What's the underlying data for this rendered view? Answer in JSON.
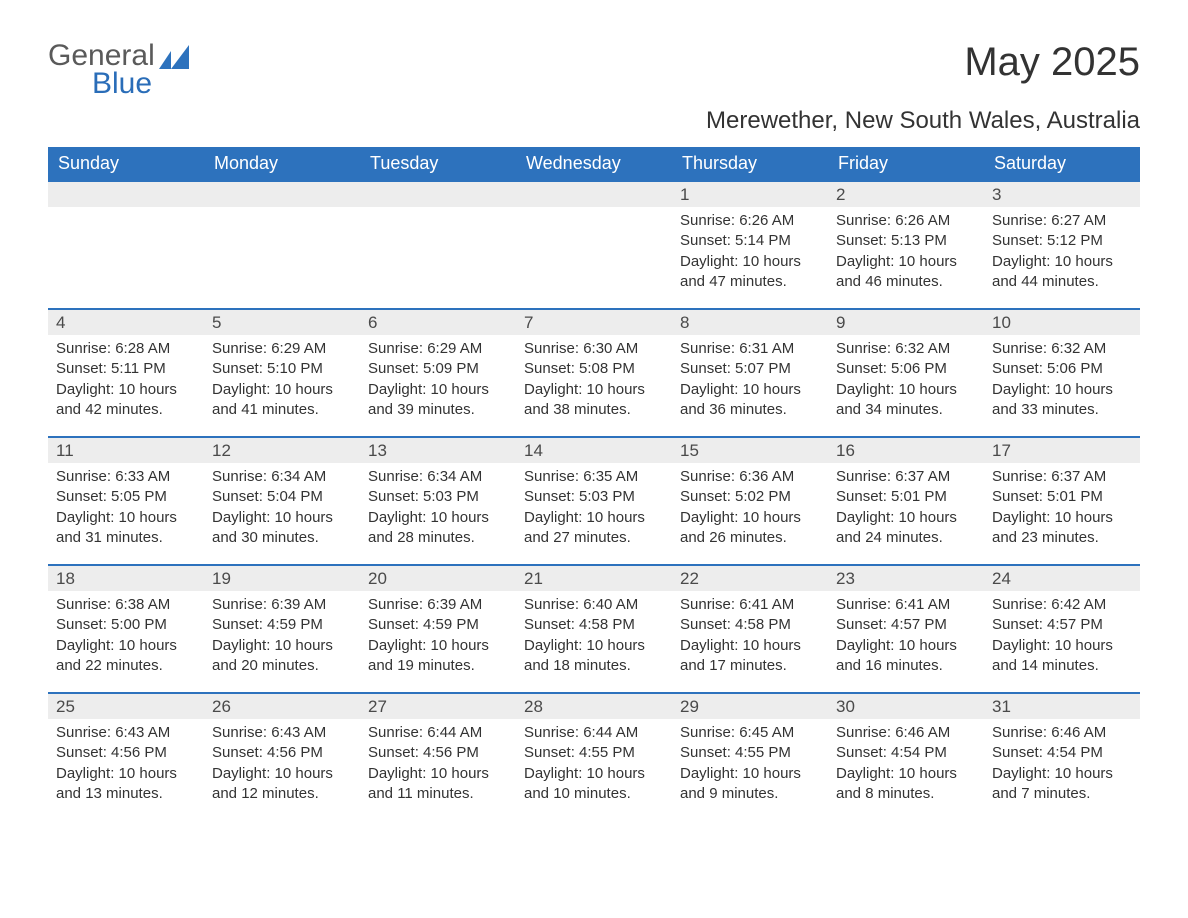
{
  "logo": {
    "word1": "General",
    "word2": "Blue",
    "color_gray": "#5a5a5a",
    "color_blue": "#2a6db8",
    "graphic_color": "#2d72bd"
  },
  "title": "May 2025",
  "subtitle": "Merewether, New South Wales, Australia",
  "colors": {
    "header_bg": "#2d72bd",
    "header_fg": "#ffffff",
    "daynum_bg": "#ededed",
    "row_border": "#2d72bd",
    "body_text": "#333333",
    "page_bg": "#ffffff"
  },
  "font_sizes": {
    "title": 40,
    "subtitle": 24,
    "weekday_header": 18,
    "day_number": 17,
    "day_body": 15
  },
  "labels": {
    "sunrise": "Sunrise:",
    "sunset": "Sunset:",
    "daylight": "Daylight:"
  },
  "weekdays": [
    "Sunday",
    "Monday",
    "Tuesday",
    "Wednesday",
    "Thursday",
    "Friday",
    "Saturday"
  ],
  "weeks": [
    [
      {
        "empty": true
      },
      {
        "empty": true
      },
      {
        "empty": true
      },
      {
        "empty": true
      },
      {
        "day": "1",
        "sunrise": "6:26 AM",
        "sunset": "5:14 PM",
        "daylight": "10 hours and 47 minutes."
      },
      {
        "day": "2",
        "sunrise": "6:26 AM",
        "sunset": "5:13 PM",
        "daylight": "10 hours and 46 minutes."
      },
      {
        "day": "3",
        "sunrise": "6:27 AM",
        "sunset": "5:12 PM",
        "daylight": "10 hours and 44 minutes."
      }
    ],
    [
      {
        "day": "4",
        "sunrise": "6:28 AM",
        "sunset": "5:11 PM",
        "daylight": "10 hours and 42 minutes."
      },
      {
        "day": "5",
        "sunrise": "6:29 AM",
        "sunset": "5:10 PM",
        "daylight": "10 hours and 41 minutes."
      },
      {
        "day": "6",
        "sunrise": "6:29 AM",
        "sunset": "5:09 PM",
        "daylight": "10 hours and 39 minutes."
      },
      {
        "day": "7",
        "sunrise": "6:30 AM",
        "sunset": "5:08 PM",
        "daylight": "10 hours and 38 minutes."
      },
      {
        "day": "8",
        "sunrise": "6:31 AM",
        "sunset": "5:07 PM",
        "daylight": "10 hours and 36 minutes."
      },
      {
        "day": "9",
        "sunrise": "6:32 AM",
        "sunset": "5:06 PM",
        "daylight": "10 hours and 34 minutes."
      },
      {
        "day": "10",
        "sunrise": "6:32 AM",
        "sunset": "5:06 PM",
        "daylight": "10 hours and 33 minutes."
      }
    ],
    [
      {
        "day": "11",
        "sunrise": "6:33 AM",
        "sunset": "5:05 PM",
        "daylight": "10 hours and 31 minutes."
      },
      {
        "day": "12",
        "sunrise": "6:34 AM",
        "sunset": "5:04 PM",
        "daylight": "10 hours and 30 minutes."
      },
      {
        "day": "13",
        "sunrise": "6:34 AM",
        "sunset": "5:03 PM",
        "daylight": "10 hours and 28 minutes."
      },
      {
        "day": "14",
        "sunrise": "6:35 AM",
        "sunset": "5:03 PM",
        "daylight": "10 hours and 27 minutes."
      },
      {
        "day": "15",
        "sunrise": "6:36 AM",
        "sunset": "5:02 PM",
        "daylight": "10 hours and 26 minutes."
      },
      {
        "day": "16",
        "sunrise": "6:37 AM",
        "sunset": "5:01 PM",
        "daylight": "10 hours and 24 minutes."
      },
      {
        "day": "17",
        "sunrise": "6:37 AM",
        "sunset": "5:01 PM",
        "daylight": "10 hours and 23 minutes."
      }
    ],
    [
      {
        "day": "18",
        "sunrise": "6:38 AM",
        "sunset": "5:00 PM",
        "daylight": "10 hours and 22 minutes."
      },
      {
        "day": "19",
        "sunrise": "6:39 AM",
        "sunset": "4:59 PM",
        "daylight": "10 hours and 20 minutes."
      },
      {
        "day": "20",
        "sunrise": "6:39 AM",
        "sunset": "4:59 PM",
        "daylight": "10 hours and 19 minutes."
      },
      {
        "day": "21",
        "sunrise": "6:40 AM",
        "sunset": "4:58 PM",
        "daylight": "10 hours and 18 minutes."
      },
      {
        "day": "22",
        "sunrise": "6:41 AM",
        "sunset": "4:58 PM",
        "daylight": "10 hours and 17 minutes."
      },
      {
        "day": "23",
        "sunrise": "6:41 AM",
        "sunset": "4:57 PM",
        "daylight": "10 hours and 16 minutes."
      },
      {
        "day": "24",
        "sunrise": "6:42 AM",
        "sunset": "4:57 PM",
        "daylight": "10 hours and 14 minutes."
      }
    ],
    [
      {
        "day": "25",
        "sunrise": "6:43 AM",
        "sunset": "4:56 PM",
        "daylight": "10 hours and 13 minutes."
      },
      {
        "day": "26",
        "sunrise": "6:43 AM",
        "sunset": "4:56 PM",
        "daylight": "10 hours and 12 minutes."
      },
      {
        "day": "27",
        "sunrise": "6:44 AM",
        "sunset": "4:56 PM",
        "daylight": "10 hours and 11 minutes."
      },
      {
        "day": "28",
        "sunrise": "6:44 AM",
        "sunset": "4:55 PM",
        "daylight": "10 hours and 10 minutes."
      },
      {
        "day": "29",
        "sunrise": "6:45 AM",
        "sunset": "4:55 PM",
        "daylight": "10 hours and 9 minutes."
      },
      {
        "day": "30",
        "sunrise": "6:46 AM",
        "sunset": "4:54 PM",
        "daylight": "10 hours and 8 minutes."
      },
      {
        "day": "31",
        "sunrise": "6:46 AM",
        "sunset": "4:54 PM",
        "daylight": "10 hours and 7 minutes."
      }
    ]
  ]
}
